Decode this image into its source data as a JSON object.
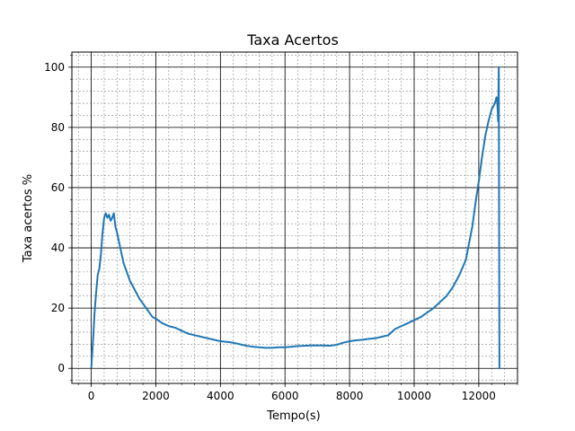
{
  "chart_data": {
    "type": "line",
    "title": "Taxa Acertos",
    "xlabel": "Tempo(s)",
    "ylabel": "Taxa acertos %",
    "xlim": [
      -600,
      13200
    ],
    "ylim": [
      -5,
      105
    ],
    "x_ticks": [
      0,
      2000,
      4000,
      6000,
      8000,
      10000,
      12000
    ],
    "x_tick_labels": [
      "0",
      "2000",
      "4000",
      "6000",
      "8000",
      "10000",
      "12000"
    ],
    "y_ticks": [
      0,
      20,
      40,
      60,
      80,
      100
    ],
    "y_tick_labels": [
      "0",
      "20",
      "40",
      "60",
      "80",
      "100"
    ],
    "x_minor_step": 400,
    "y_minor_step": 4,
    "grid": "major solid black, minor dashed gray",
    "series": [
      {
        "name": "",
        "color": "#1f77b4",
        "x": [
          0,
          30,
          60,
          100,
          150,
          200,
          250,
          300,
          350,
          400,
          450,
          500,
          550,
          600,
          650,
          700,
          750,
          800,
          900,
          1000,
          1100,
          1200,
          1300,
          1400,
          1500,
          1600,
          1700,
          1800,
          1900,
          2000,
          2200,
          2400,
          2600,
          2800,
          3000,
          3200,
          3400,
          3600,
          3800,
          4000,
          4200,
          4400,
          4600,
          4800,
          5000,
          5200,
          5400,
          5600,
          5800,
          6000,
          6200,
          6400,
          6600,
          6800,
          7000,
          7200,
          7400,
          7600,
          7800,
          8000,
          8200,
          8400,
          8600,
          8800,
          9000,
          9200,
          9300,
          9400,
          9600,
          9800,
          10000,
          10200,
          10400,
          10600,
          10800,
          11000,
          11200,
          11400,
          11600,
          11800,
          11900,
          12000,
          12100,
          12200,
          12300,
          12400,
          12450,
          12500,
          12550,
          12570,
          12590,
          12600,
          12620,
          12640,
          12650
        ],
        "y": [
          0,
          5,
          10,
          18,
          25,
          31,
          33,
          38,
          45,
          50,
          51.5,
          50,
          51,
          49,
          50,
          51.5,
          47,
          45,
          40,
          35,
          32,
          29,
          27,
          25,
          23,
          21.5,
          20,
          18.5,
          17,
          16.5,
          15,
          14,
          13.5,
          12.5,
          11.5,
          11,
          10.5,
          10,
          9.5,
          9,
          8.8,
          8.5,
          8,
          7.5,
          7.2,
          7,
          6.8,
          6.8,
          7,
          7,
          7.2,
          7.4,
          7.5,
          7.6,
          7.6,
          7.6,
          7.5,
          7.8,
          8.5,
          9,
          9.3,
          9.5,
          9.8,
          10,
          10.5,
          11,
          12,
          13,
          14,
          15,
          16,
          17,
          18.5,
          20,
          22,
          24,
          27,
          31,
          36,
          47,
          55,
          62,
          70,
          77,
          82,
          86,
          87,
          88,
          90,
          89,
          85,
          82,
          100,
          0,
          0
        ]
      }
    ]
  }
}
